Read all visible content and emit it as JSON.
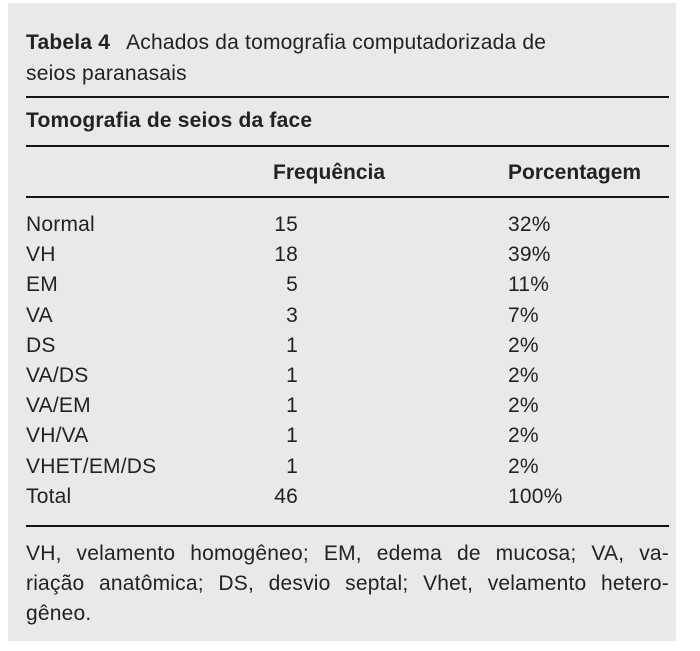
{
  "page": {
    "background_color": "#ffffff",
    "card_background_color": "#e8e9e9",
    "text_color": "#242122",
    "rule_color": "#161414"
  },
  "title": {
    "label": "Tabela 4",
    "caption_line1": "Achados da tomografia computadorizada de",
    "caption_line2": "seios paranasais",
    "caption_full": "Achados da tomografia computadorizada de seios paranasais"
  },
  "table": {
    "section_title": "Tomografia de seios da face",
    "columns": {
      "frequency": "Frequência",
      "percentage": "Porcentagem"
    },
    "rows": [
      {
        "label": "Normal",
        "frequency": "15",
        "percentage": "32%"
      },
      {
        "label": "VH",
        "frequency": "18",
        "percentage": "39%"
      },
      {
        "label": "EM",
        "frequency": "5",
        "percentage": "11%"
      },
      {
        "label": "VA",
        "frequency": "3",
        "percentage": "7%"
      },
      {
        "label": "DS",
        "frequency": "1",
        "percentage": "2%"
      },
      {
        "label": "VA/DS",
        "frequency": "1",
        "percentage": "2%"
      },
      {
        "label": "VA/EM",
        "frequency": "1",
        "percentage": "2%"
      },
      {
        "label": "VH/VA",
        "frequency": "1",
        "percentage": "2%"
      },
      {
        "label": "VHET/EM/DS",
        "frequency": "1",
        "percentage": "2%"
      },
      {
        "label": "Total",
        "frequency": "46",
        "percentage": "100%"
      }
    ]
  },
  "footnote": {
    "line1": "VH, velamento homogêneo; EM, edema de mucosa; VA, va-",
    "line2": "riação anatômica; DS, desvio septal; Vhet, velamento hetero-",
    "line3": "gêneo.",
    "full_text": "VH, velamento homogêneo; EM, edema de mucosa; VA, variação anatômica; DS, desvio septal; Vhet, velamento heterogêneo."
  }
}
